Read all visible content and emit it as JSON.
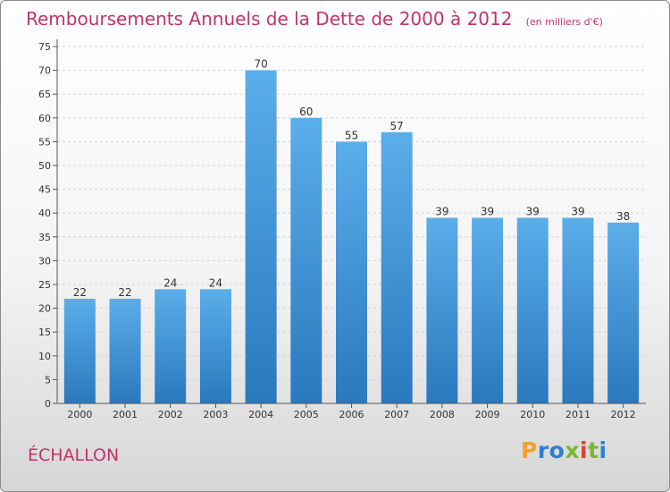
{
  "chart_data": {
    "type": "bar",
    "title": "Remboursements Annuels de la Dette de 2000 à 2012",
    "subtitle": "(en milliers d'€)",
    "categories": [
      "2000",
      "2001",
      "2002",
      "2003",
      "2004",
      "2005",
      "2006",
      "2007",
      "2008",
      "2009",
      "2010",
      "2011",
      "2012"
    ],
    "values": [
      22,
      22,
      24,
      24,
      70,
      60,
      55,
      57,
      39,
      39,
      39,
      39,
      38
    ],
    "ylim": [
      0,
      75
    ],
    "yticks": [
      0,
      5,
      10,
      15,
      20,
      25,
      30,
      35,
      40,
      45,
      50,
      55,
      60,
      65,
      70,
      75
    ],
    "grid": true,
    "bar_color": "#3d8fd6"
  },
  "commune": "ÉCHALLON",
  "logo": {
    "letters": [
      "P",
      "r",
      "o",
      "x",
      "i",
      "t",
      "i"
    ],
    "colors": [
      "#f2a12a",
      "#2d7fd0",
      "#2d7fd0",
      "#7ab833",
      "#d8402f",
      "#7ab833",
      "#2d7fd0"
    ]
  }
}
